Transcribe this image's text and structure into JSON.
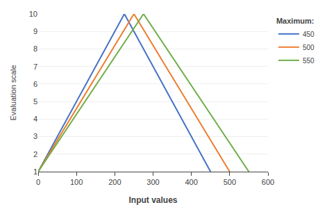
{
  "chart_data": {
    "type": "line",
    "xlabel": "Input values",
    "ylabel": "Evaluation scale",
    "legend_title": "Maximum:",
    "series": [
      {
        "name": "450",
        "color": "#4472C4",
        "x": [
          0,
          225,
          450
        ],
        "values": [
          1,
          10,
          1
        ]
      },
      {
        "name": "500",
        "color": "#ED7D31",
        "x": [
          0,
          250,
          500
        ],
        "values": [
          1,
          10,
          1
        ]
      },
      {
        "name": "550",
        "color": "#70AD47",
        "x": [
          0,
          275,
          550
        ],
        "values": [
          1,
          10,
          1
        ]
      }
    ],
    "xlim": [
      0,
      600
    ],
    "ylim": [
      1,
      10
    ],
    "xticks": [
      0,
      100,
      200,
      300,
      400,
      500,
      600
    ],
    "yticks": [
      1,
      2,
      3,
      4,
      5,
      6,
      7,
      8,
      9,
      10
    ],
    "grid": "y",
    "legend": "upper right"
  }
}
